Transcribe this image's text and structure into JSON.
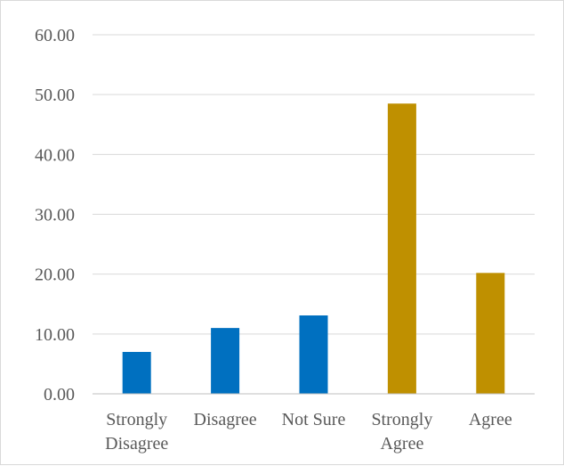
{
  "chart_data": {
    "type": "bar",
    "categories": [
      [
        "Strongly",
        "Disagree"
      ],
      [
        "Disagree"
      ],
      [
        "Not Sure"
      ],
      [
        "Strongly",
        "Agree"
      ],
      [
        "Agree"
      ]
    ],
    "values": [
      7.0,
      11.0,
      13.1,
      48.5,
      20.2
    ],
    "bar_colors": [
      "#0070c0",
      "#0070c0",
      "#0070c0",
      "#bf9000",
      "#bf9000"
    ],
    "ylim": [
      0,
      60
    ],
    "yticks": [
      "0.00",
      "10.00",
      "20.00",
      "30.00",
      "40.00",
      "50.00",
      "60.00"
    ],
    "grid": true,
    "gridline_color": "#d9d9d9",
    "axis_line_color": "#bfbfbf"
  }
}
